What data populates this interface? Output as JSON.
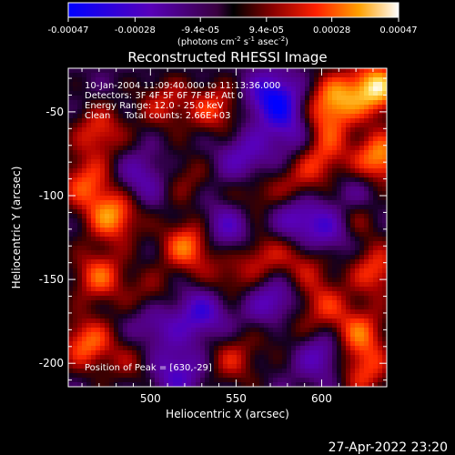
{
  "chart_data": {
    "type": "heatmap",
    "title": "Reconstructed RHESSI Image",
    "xlabel": "Heliocentric X (arcsec)",
    "ylabel": "Heliocentric Y (arcsec)",
    "xlim": [
      452,
      638
    ],
    "ylim": [
      -214,
      -24
    ],
    "x_ticks": [
      500,
      550,
      600
    ],
    "y_ticks": [
      -50,
      -100,
      -150,
      -200
    ],
    "colorbar": {
      "range": [
        -0.00047,
        0.00047
      ],
      "ticks": [
        {
          "value": -0.00047,
          "label": "-0.00047"
        },
        {
          "value": -0.00028,
          "label": "-0.00028"
        },
        {
          "value": -9.4e-05,
          "label": "-9.4e-05"
        },
        {
          "value": 9.4e-05,
          "label": "9.4e-05"
        },
        {
          "value": 0.00028,
          "label": "0.00028"
        },
        {
          "value": 0.00047,
          "label": "0.00047"
        }
      ],
      "units_prefix": "(photons cm",
      "units_exp1": "-2",
      "units_mid": " s",
      "units_exp2": "-1",
      "units_mid2": " asec",
      "units_exp3": "-2",
      "units_suffix": ")"
    },
    "annotations": [
      "10-Jan-2004 11:09:40.000 to 11:13:36.000",
      "Detectors: 3F 4F 5F 6F 7F 8F, Att 0",
      "Energy Range: 12.0 - 25.0 keV",
      "Clean     Total counts: 2.66E+03"
    ],
    "peak_label": "Position of Peak = [630,-29]",
    "hotspots": [
      {
        "x": 632,
        "y": -36,
        "v": 1.0
      },
      {
        "x": 608,
        "y": -42,
        "v": 0.7
      },
      {
        "x": 634,
        "y": -78,
        "v": 0.85
      },
      {
        "x": 600,
        "y": -78,
        "v": 0.5
      },
      {
        "x": 618,
        "y": -112,
        "v": 0.55
      },
      {
        "x": 632,
        "y": -145,
        "v": 0.6
      },
      {
        "x": 470,
        "y": -62,
        "v": 0.55
      },
      {
        "x": 462,
        "y": -92,
        "v": 0.6
      },
      {
        "x": 478,
        "y": -112,
        "v": 0.8
      },
      {
        "x": 470,
        "y": -148,
        "v": 0.65
      },
      {
        "x": 463,
        "y": -188,
        "v": 0.7
      },
      {
        "x": 522,
        "y": -130,
        "v": 0.75
      },
      {
        "x": 538,
        "y": -48,
        "v": 0.55
      },
      {
        "x": 508,
        "y": -45,
        "v": 0.45
      },
      {
        "x": 500,
        "y": -162,
        "v": 0.4
      },
      {
        "x": 545,
        "y": -150,
        "v": 0.35
      },
      {
        "x": 565,
        "y": -135,
        "v": 0.45
      },
      {
        "x": 590,
        "y": -140,
        "v": 0.4
      },
      {
        "x": 600,
        "y": -165,
        "v": 0.5
      },
      {
        "x": 622,
        "y": -182,
        "v": 0.65
      },
      {
        "x": 548,
        "y": -198,
        "v": 0.45
      },
      {
        "x": 578,
        "y": -178,
        "v": 0.35
      },
      {
        "x": 560,
        "y": -100,
        "v": 0.35
      },
      {
        "x": 585,
        "y": -95,
        "v": 0.4
      },
      {
        "x": 520,
        "y": -90,
        "v": 0.3
      },
      {
        "x": 600,
        "y": -58,
        "v": 0.5
      },
      {
        "x": 625,
        "y": -205,
        "v": 0.55
      },
      {
        "x": 490,
        "y": -200,
        "v": 0.3
      }
    ],
    "cold_spots": [
      {
        "x": 572,
        "y": -42,
        "v": -0.8
      },
      {
        "x": 585,
        "y": -62,
        "v": -0.5
      },
      {
        "x": 555,
        "y": -78,
        "v": -0.45
      },
      {
        "x": 605,
        "y": -120,
        "v": -0.55
      },
      {
        "x": 545,
        "y": -120,
        "v": -0.5
      },
      {
        "x": 530,
        "y": -170,
        "v": -0.55
      },
      {
        "x": 573,
        "y": -165,
        "v": -0.6
      },
      {
        "x": 502,
        "y": -175,
        "v": -0.45
      },
      {
        "x": 495,
        "y": -90,
        "v": -0.4
      },
      {
        "x": 585,
        "y": -112,
        "v": -0.5
      },
      {
        "x": 515,
        "y": -205,
        "v": -0.5
      },
      {
        "x": 600,
        "y": -195,
        "v": -0.45
      },
      {
        "x": 620,
        "y": -100,
        "v": -0.4
      }
    ]
  },
  "footer": {
    "date_stamp": "27-Apr-2022 23:20"
  }
}
